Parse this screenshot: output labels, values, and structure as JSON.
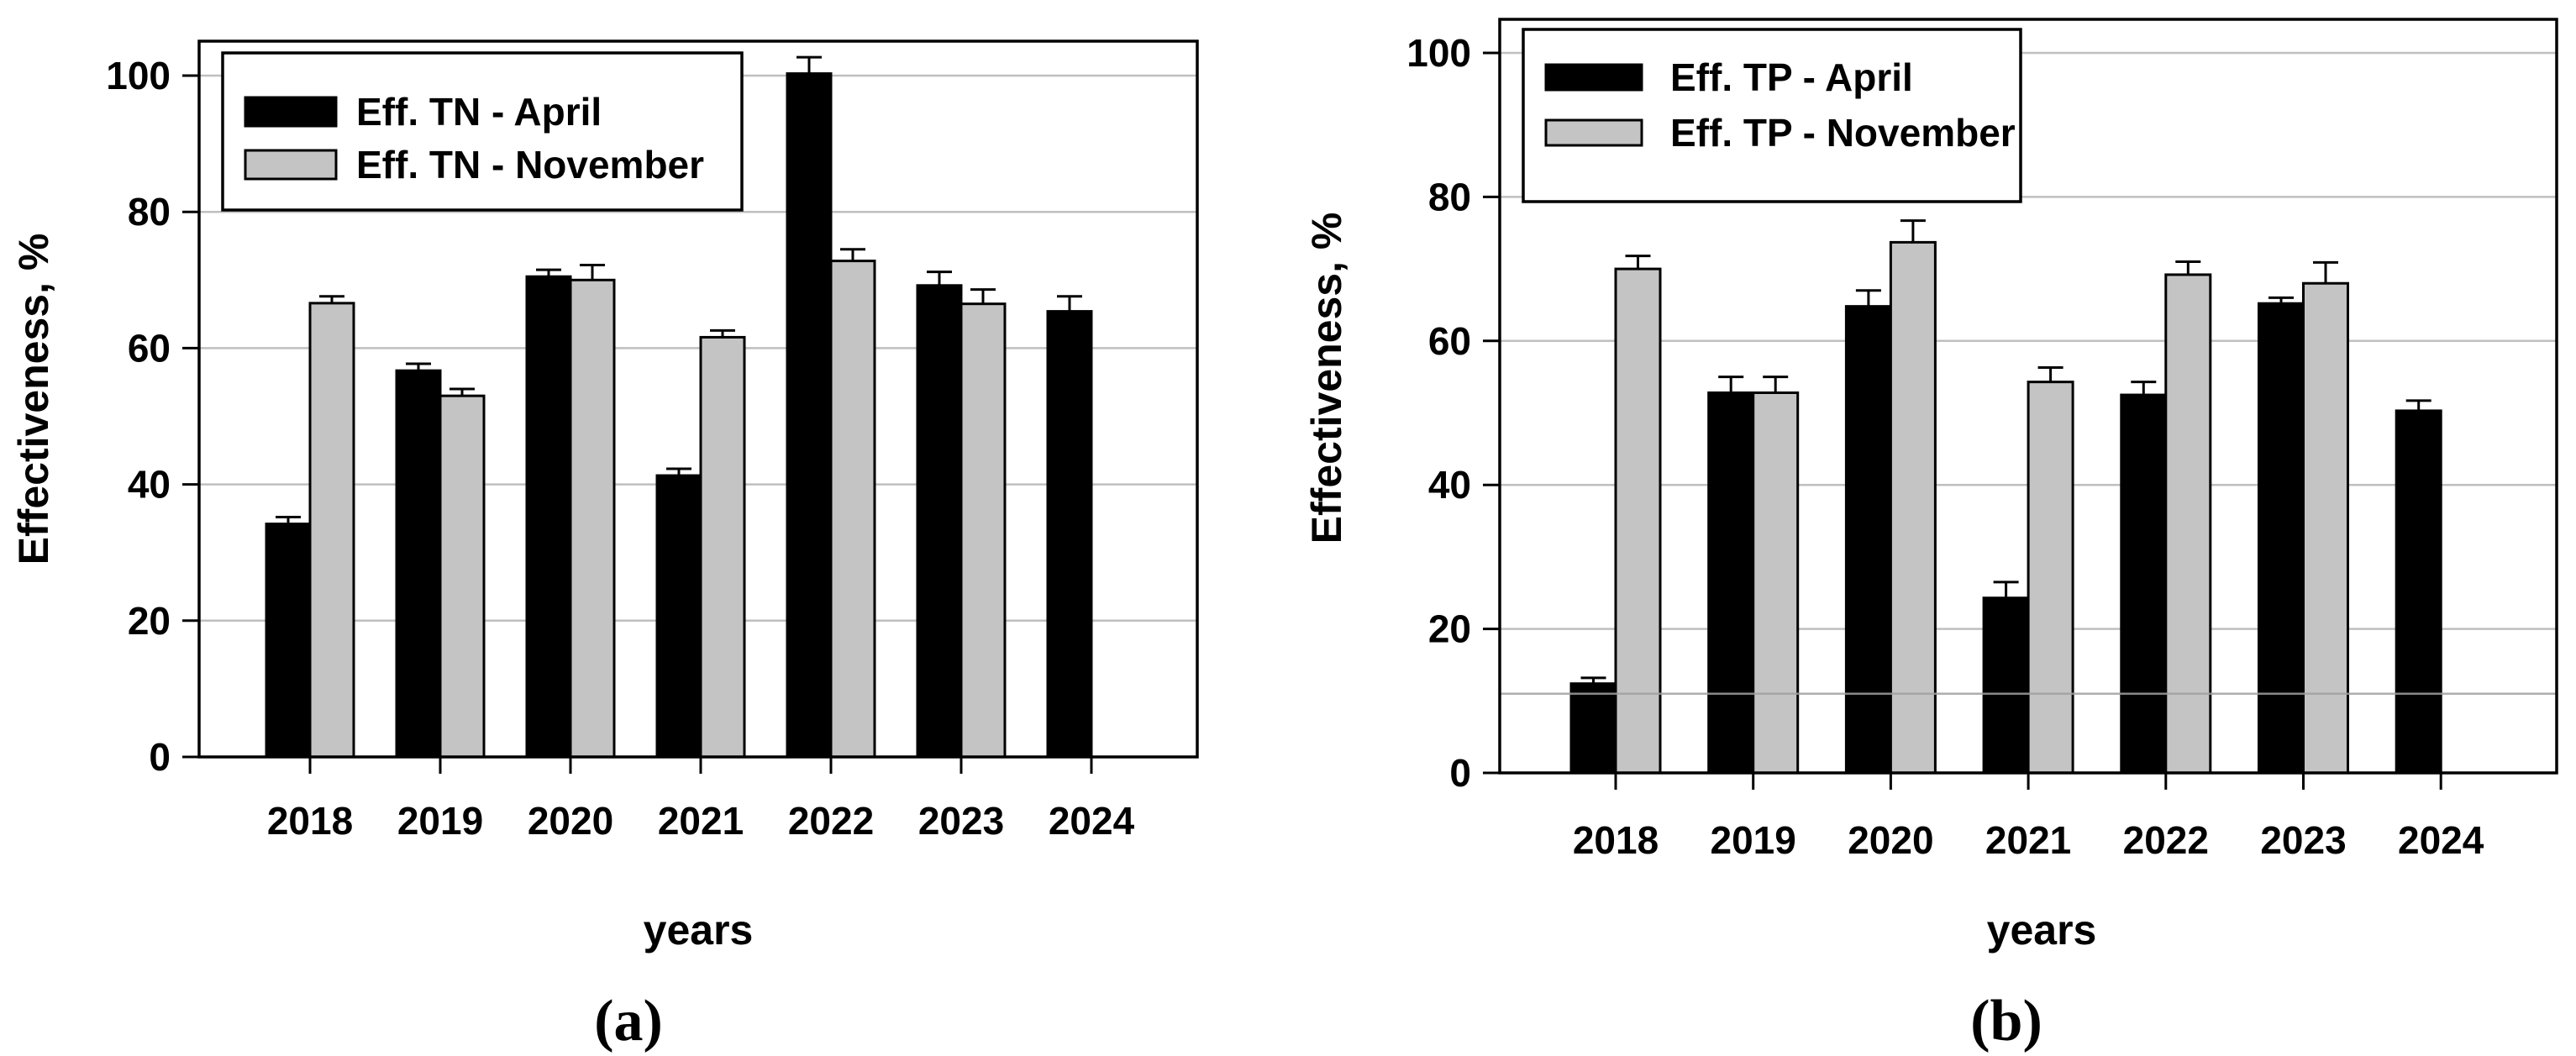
{
  "figure": {
    "background": "#ffffff",
    "panel_labels": [
      "(a)",
      "(b)"
    ]
  },
  "colors": {
    "april_bar": "#000000",
    "november_bar": "#c4c4c4",
    "bar_outline": "#000000",
    "gridline": "#bfbfbf",
    "frame": "#000000",
    "text": "#000000",
    "artifact_line": "#a0a0a0"
  },
  "chart_data": [
    {
      "type": "bar",
      "panel": "a",
      "title": "",
      "xlabel": "years",
      "ylabel": "Effectiveness, %",
      "ylim": [
        0,
        105
      ],
      "yticks": [
        0,
        20,
        40,
        60,
        80,
        100
      ],
      "grid": true,
      "legend_position": "top-left",
      "error_bars": "upper",
      "categories": [
        "2018",
        "2019",
        "2020",
        "2021",
        "2022",
        "2023",
        "2024"
      ],
      "series": [
        {
          "name": "Eff. TN - April",
          "color": "#000000",
          "values": [
            34.2,
            56.7,
            70.5,
            41.3,
            100.3,
            69.2,
            65.4
          ],
          "errors": [
            1.0,
            1.0,
            1.0,
            1.0,
            2.4,
            2.0,
            2.2
          ]
        },
        {
          "name": "Eff. TN - November",
          "color": "#c4c4c4",
          "values": [
            66.6,
            53.0,
            70.0,
            61.6,
            72.8,
            66.5,
            null
          ],
          "errors": [
            1.0,
            1.0,
            2.2,
            1.0,
            1.7,
            2.1,
            null
          ]
        }
      ]
    },
    {
      "type": "bar",
      "panel": "b",
      "title": "",
      "xlabel": "years",
      "ylabel": "Effectiveness, %",
      "ylim": [
        0,
        104
      ],
      "yticks": [
        0,
        20,
        40,
        60,
        80,
        100
      ],
      "grid": true,
      "legend_position": "top-left",
      "error_bars": "upper",
      "artifact_line_value": 11,
      "categories": [
        "2018",
        "2019",
        "2020",
        "2021",
        "2022",
        "2023",
        "2024"
      ],
      "series": [
        {
          "name": "Eff. TP - April",
          "color": "#000000",
          "values": [
            12.4,
            52.8,
            64.8,
            24.3,
            52.5,
            65.2,
            50.3
          ],
          "errors": [
            0.8,
            2.2,
            2.2,
            2.2,
            1.8,
            0.8,
            1.4
          ]
        },
        {
          "name": "Eff. TP - November",
          "color": "#c4c4c4",
          "values": [
            70.0,
            52.8,
            73.7,
            54.3,
            69.2,
            68.0,
            null
          ],
          "errors": [
            1.8,
            2.2,
            3.0,
            2.0,
            1.8,
            2.9,
            null
          ]
        }
      ]
    }
  ]
}
